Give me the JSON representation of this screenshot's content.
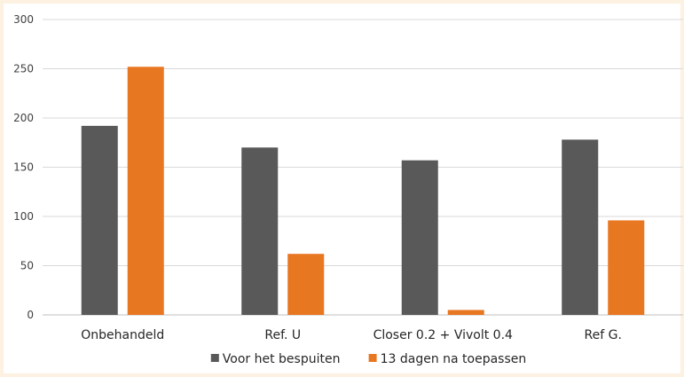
{
  "chart_data": {
    "type": "bar",
    "categories": [
      "Onbehandeld",
      "Ref. U",
      "Closer 0.2 + Vivolt 0.4",
      "Ref G."
    ],
    "series": [
      {
        "name": "Voor het bespuiten",
        "color": "#595959",
        "values": [
          192,
          170,
          157,
          178
        ]
      },
      {
        "name": "13 dagen na toepassen",
        "color": "#e87722",
        "values": [
          252,
          62,
          5,
          96
        ]
      }
    ],
    "ylim": [
      0,
      300
    ],
    "yticks": [
      0,
      50,
      100,
      150,
      200,
      250,
      300
    ],
    "grid": true,
    "legend_position": "bottom"
  }
}
